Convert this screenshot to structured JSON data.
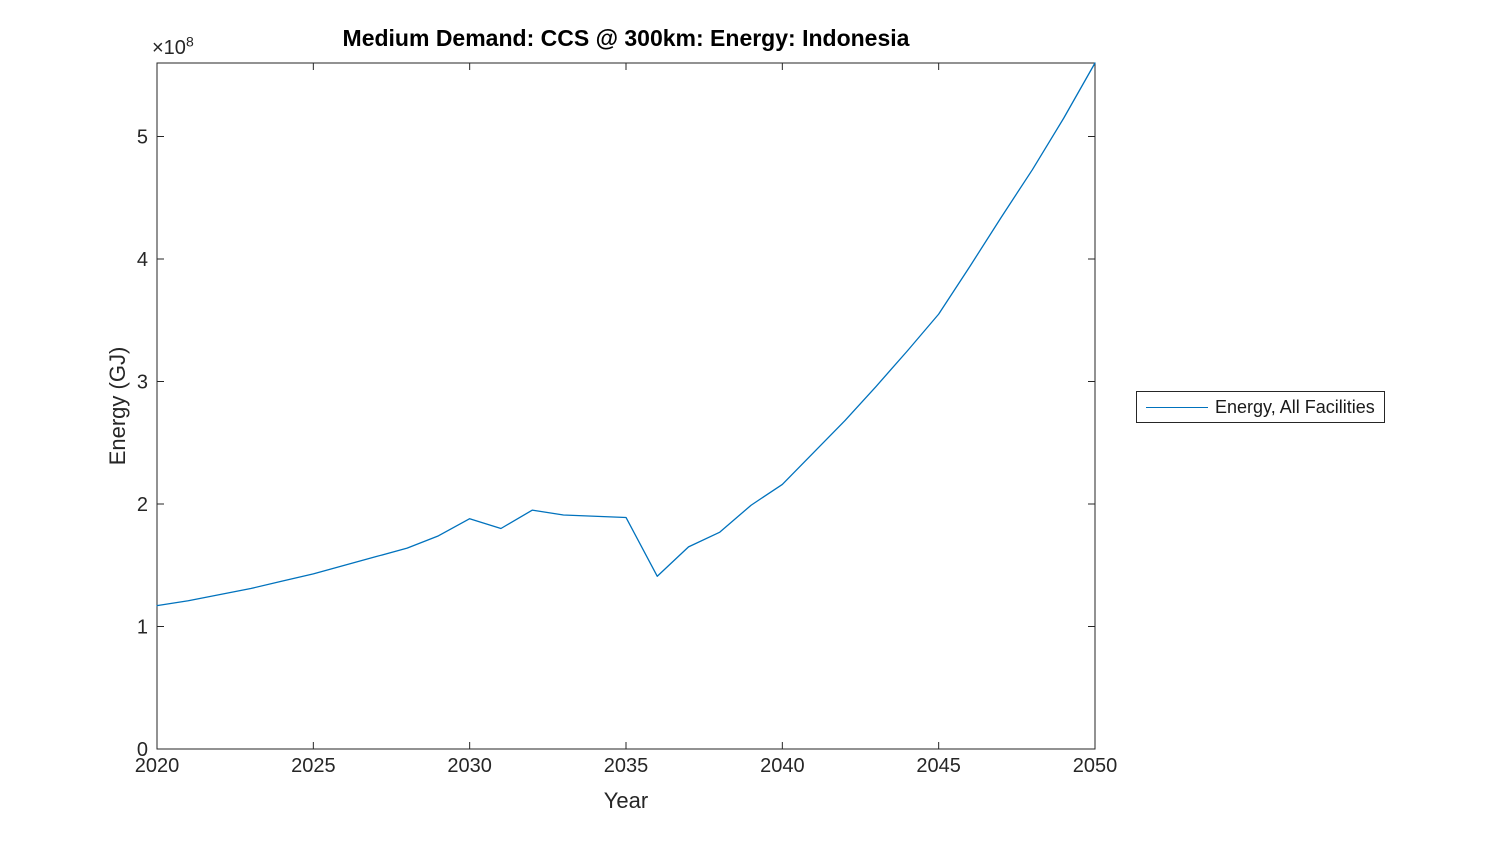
{
  "figure": {
    "background": "#ffffff"
  },
  "chart_data": {
    "type": "line",
    "title": "Medium Demand: CCS @ 300km: Energy: Indonesia",
    "xlabel": "Year",
    "ylabel": "Energy (GJ)",
    "y_offset_label": {
      "base": "×10",
      "exponent": "8"
    },
    "grid": false,
    "box": true,
    "tick_direction": "in",
    "axis_color": "#262626",
    "title_color": "#000000",
    "xlim": [
      2020,
      2050
    ],
    "ylim": [
      0,
      560000000
    ],
    "xticks": [
      2020,
      2025,
      2030,
      2035,
      2040,
      2045,
      2050
    ],
    "xtick_labels": [
      "2020",
      "2025",
      "2030",
      "2035",
      "2040",
      "2045",
      "2050"
    ],
    "ytick_values": [
      0,
      100000000,
      200000000,
      300000000,
      400000000,
      500000000
    ],
    "ytick_labels": [
      "0",
      "1",
      "2",
      "3",
      "4",
      "5"
    ],
    "legend": {
      "position": "right-outside",
      "entries": [
        {
          "label": "Energy, All Facilities",
          "color": "#0072BD"
        }
      ]
    },
    "series": [
      {
        "name": "Energy, All Facilities",
        "color": "#0072BD",
        "x": [
          2020,
          2021,
          2022,
          2023,
          2024,
          2025,
          2026,
          2027,
          2028,
          2029,
          2030,
          2031,
          2032,
          2033,
          2034,
          2035,
          2036,
          2037,
          2038,
          2039,
          2040,
          2041,
          2042,
          2043,
          2044,
          2045,
          2046,
          2047,
          2048,
          2049,
          2050
        ],
        "values": [
          117000000,
          121000000,
          126000000,
          131000000,
          137000000,
          143000000,
          150000000,
          157000000,
          164000000,
          174000000,
          188000000,
          180000000,
          195000000,
          191000000,
          190000000,
          189000000,
          141000000,
          165000000,
          177000000,
          199000000,
          216000000,
          242000000,
          268000000,
          296000000,
          325000000,
          355000000,
          394000000,
          434000000,
          473000000,
          515000000,
          560000000
        ]
      }
    ]
  }
}
